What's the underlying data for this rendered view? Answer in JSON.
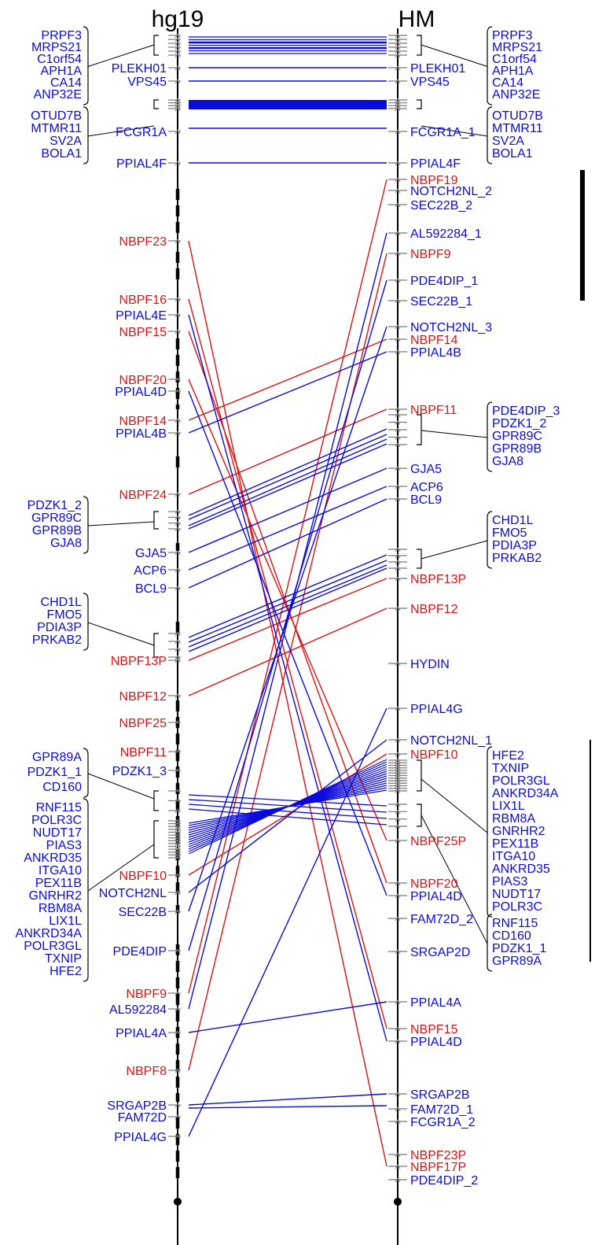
{
  "headers": {
    "left": "hg19",
    "right": "HM"
  },
  "colors": {
    "blue": "#0a0adc",
    "red": "#e01010",
    "axis": "#000000",
    "tick": "#777777"
  },
  "left_labels": [
    {
      "id": "L_PLEKH01",
      "text": "PLEKH01",
      "c": "blue"
    },
    {
      "id": "L_VPS45",
      "text": "VPS45",
      "c": "blue"
    },
    {
      "id": "L_FCGR1A",
      "text": "FCGR1A",
      "c": "blue"
    },
    {
      "id": "L_PPIAL4F",
      "text": "PPIAL4F",
      "c": "blue"
    },
    {
      "id": "L_NBPF23",
      "text": "NBPF23",
      "c": "red"
    },
    {
      "id": "L_NBPF16",
      "text": "NBPF16",
      "c": "red"
    },
    {
      "id": "L_PPIAL4E",
      "text": "PPIAL4E",
      "c": "blue"
    },
    {
      "id": "L_NBPF15",
      "text": "NBPF15",
      "c": "red"
    },
    {
      "id": "L_NBPF20",
      "text": "NBPF20",
      "c": "red"
    },
    {
      "id": "L_PPIAL4D",
      "text": "PPIAL4D",
      "c": "blue"
    },
    {
      "id": "L_NBPF14",
      "text": "NBPF14",
      "c": "red"
    },
    {
      "id": "L_PPIAL4B",
      "text": "PPIAL4B",
      "c": "blue"
    },
    {
      "id": "L_NBPF24",
      "text": "NBPF24",
      "c": "red"
    },
    {
      "id": "L_GJA5",
      "text": "GJA5",
      "c": "blue"
    },
    {
      "id": "L_ACP6",
      "text": "ACP6",
      "c": "blue"
    },
    {
      "id": "L_BCL9",
      "text": "BCL9",
      "c": "blue"
    },
    {
      "id": "L_NBPF13P",
      "text": "NBPF13P",
      "c": "red"
    },
    {
      "id": "L_NBPF12",
      "text": "NBPF12",
      "c": "red"
    },
    {
      "id": "L_NBPF25",
      "text": "NBPF25",
      "c": "red"
    },
    {
      "id": "L_NBPF11",
      "text": "NBPF11",
      "c": "red"
    },
    {
      "id": "L_PDZK1_3",
      "text": "PDZK1_3",
      "c": "blue"
    },
    {
      "id": "L_NBPF10",
      "text": "NBPF10",
      "c": "red"
    },
    {
      "id": "L_NOTCH2NL",
      "text": "NOTCH2NL",
      "c": "blue"
    },
    {
      "id": "L_SEC22B",
      "text": "SEC22B",
      "c": "blue"
    },
    {
      "id": "L_PDE4DIP",
      "text": "PDE4DIP",
      "c": "blue"
    },
    {
      "id": "L_NBPF9",
      "text": "NBPF9",
      "c": "red"
    },
    {
      "id": "L_AL592284",
      "text": "AL592284",
      "c": "blue"
    },
    {
      "id": "L_PPIAL4A",
      "text": "PPIAL4A",
      "c": "blue"
    },
    {
      "id": "L_NBPF8",
      "text": "NBPF8",
      "c": "red"
    },
    {
      "id": "L_SRGAP2B",
      "text": "SRGAP2B",
      "c": "blue"
    },
    {
      "id": "L_FAM72D",
      "text": "FAM72D",
      "c": "blue"
    },
    {
      "id": "L_PPIAL4G",
      "text": "PPIAL4G",
      "c": "blue"
    }
  ],
  "right_labels": [
    {
      "id": "R_PLEKH01",
      "text": "PLEKH01",
      "c": "blue"
    },
    {
      "id": "R_VPS45",
      "text": "VPS45",
      "c": "blue"
    },
    {
      "id": "R_FCGR1A_1",
      "text": "FCGR1A_1",
      "c": "blue"
    },
    {
      "id": "R_PPIAL4F",
      "text": "PPIAL4F",
      "c": "blue"
    },
    {
      "id": "R_NBPF19",
      "text": "NBPF19",
      "c": "red"
    },
    {
      "id": "R_NOTCH2NL_2",
      "text": "NOTCH2NL_2",
      "c": "blue"
    },
    {
      "id": "R_SEC22B_2",
      "text": "SEC22B_2",
      "c": "blue"
    },
    {
      "id": "R_AL592284_1",
      "text": "AL592284_1",
      "c": "blue"
    },
    {
      "id": "R_NBPF9",
      "text": "NBPF9",
      "c": "red"
    },
    {
      "id": "R_PDE4DIP_1",
      "text": "PDE4DIP_1",
      "c": "blue"
    },
    {
      "id": "R_SEC22B_1",
      "text": "SEC22B_1",
      "c": "blue"
    },
    {
      "id": "R_NOTCH2NL_3",
      "text": "NOTCH2NL_3",
      "c": "blue"
    },
    {
      "id": "R_NBPF14",
      "text": "NBPF14",
      "c": "red"
    },
    {
      "id": "R_PPIAL4B",
      "text": "PPIAL4B",
      "c": "blue"
    },
    {
      "id": "R_NBPF11",
      "text": "NBPF11",
      "c": "red"
    },
    {
      "id": "R_GJA5",
      "text": "GJA5",
      "c": "blue"
    },
    {
      "id": "R_ACP6",
      "text": "ACP6",
      "c": "blue"
    },
    {
      "id": "R_BCL9",
      "text": "BCL9",
      "c": "blue"
    },
    {
      "id": "R_NBPF13P",
      "text": "NBPF13P",
      "c": "red"
    },
    {
      "id": "R_NBPF12",
      "text": "NBPF12",
      "c": "red"
    },
    {
      "id": "R_HYDIN",
      "text": "HYDIN",
      "c": "blue"
    },
    {
      "id": "R_PPIAL4G",
      "text": "PPIAL4G",
      "c": "blue"
    },
    {
      "id": "R_NOTCH2NL_1",
      "text": "NOTCH2NL_1",
      "c": "blue"
    },
    {
      "id": "R_NBPF10",
      "text": "NBPF10",
      "c": "red"
    },
    {
      "id": "R_NBPF25P",
      "text": "NBPF25P",
      "c": "red"
    },
    {
      "id": "R_NBPF20",
      "text": "NBPF20",
      "c": "red"
    },
    {
      "id": "R_PPIAL4D",
      "text": "PPIAL4D",
      "c": "blue"
    },
    {
      "id": "R_FAM72D_2",
      "text": "FAM72D_2",
      "c": "blue"
    },
    {
      "id": "R_SRGAP2D",
      "text": "SRGAP2D",
      "c": "blue"
    },
    {
      "id": "R_PPIAL4A",
      "text": "PPIAL4A",
      "c": "blue"
    },
    {
      "id": "R_NBPF15",
      "text": "NBPF15",
      "c": "red"
    },
    {
      "id": "R_PPIAL4D_b",
      "text": "PPIAL4D",
      "c": "blue"
    },
    {
      "id": "R_SRGAP2B",
      "text": "SRGAP2B",
      "c": "blue"
    },
    {
      "id": "R_FAM72D_1",
      "text": "FAM72D_1",
      "c": "blue"
    },
    {
      "id": "R_FCGR1A_2",
      "text": "FCGR1A_2",
      "c": "blue"
    },
    {
      "id": "R_NBPF23P",
      "text": "NBPF23P",
      "c": "red"
    },
    {
      "id": "R_NBPF17P",
      "text": "NBPF17P",
      "c": "red"
    },
    {
      "id": "R_PDE4DIP_2",
      "text": "PDE4DIP_2",
      "c": "blue"
    }
  ],
  "left_groups": [
    {
      "id": "LG1",
      "items": [
        "PRPF3",
        "MRPS21",
        "C1orf54",
        "APH1A",
        "CA14",
        "ANP32E"
      ]
    },
    {
      "id": "LG2",
      "items": [
        "OTUD7B",
        "MTMR11",
        "SV2A",
        "BOLA1"
      ]
    },
    {
      "id": "LG3",
      "items": [
        "PDZK1_2",
        "GPR89C",
        "GPR89B",
        "GJA8"
      ]
    },
    {
      "id": "LG4",
      "items": [
        "CHD1L",
        "FMO5",
        "PDIA3P",
        "PRKAB2"
      ]
    },
    {
      "id": "LG5",
      "items": [
        "GPR89A",
        "PDZK1_1",
        "CD160"
      ]
    },
    {
      "id": "LG6",
      "items": [
        "RNF115",
        "POLR3C",
        "NUDT17",
        "PIAS3",
        "ANKRD35",
        "ITGA10",
        "PEX11B",
        "GNRHR2",
        "RBM8A",
        "LIX1L",
        "ANKRD34A",
        "POLR3GL",
        "TXNIP",
        "HFE2"
      ]
    }
  ],
  "right_groups": [
    {
      "id": "RG1",
      "items": [
        "PRPF3",
        "MRPS21",
        "C1orf54",
        "APH1A",
        "CA14",
        "ANP32E"
      ]
    },
    {
      "id": "RG2",
      "items": [
        "OTUD7B",
        "MTMR11",
        "SV2A",
        "BOLA1"
      ]
    },
    {
      "id": "RG3",
      "items": [
        "PDE4DIP_3",
        "PDZK1_2",
        "GPR89C",
        "GPR89B",
        "GJA8"
      ]
    },
    {
      "id": "RG4",
      "items": [
        "CHD1L",
        "FMO5",
        "PDIA3P",
        "PRKAB2"
      ]
    },
    {
      "id": "RG5",
      "items": [
        "HFE2",
        "TXNIP",
        "POLR3GL",
        "ANKRD34A",
        "LIX1L",
        "RBM8A",
        "GNRHR2",
        "PEX11B",
        "ITGA10",
        "ANKRD35",
        "PIAS3",
        "NUDT17",
        "POLR3C"
      ]
    },
    {
      "id": "RG6",
      "items": [
        "RNF115",
        "CD160",
        "PDZK1_1",
        "GPR89A"
      ]
    }
  ]
}
